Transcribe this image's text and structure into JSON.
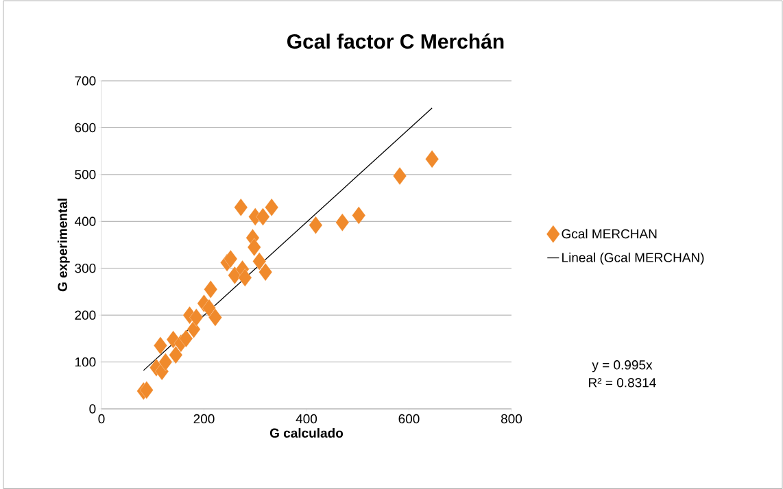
{
  "chart_data": {
    "type": "scatter",
    "title": "Gcal factor C Merchán",
    "xlabel": "G calculado",
    "ylabel": "G experimental",
    "xlim": [
      0,
      800
    ],
    "ylim": [
      0,
      700
    ],
    "xticks": [
      0,
      200,
      400,
      600,
      800
    ],
    "yticks": [
      0,
      100,
      200,
      300,
      400,
      500,
      600,
      700
    ],
    "grid": "y",
    "legend": "right",
    "annotations": [
      "y = 0.995x",
      "R² = 0.8314"
    ],
    "series": [
      {
        "name": "Gcal MERCHAN",
        "marker": "diamond",
        "color": "#f08a2c",
        "x": [
          82,
          88,
          107,
          118,
          115,
          125,
          140,
          145,
          155,
          165,
          172,
          180,
          185,
          200,
          210,
          213,
          222,
          245,
          252,
          260,
          272,
          275,
          280,
          295,
          298,
          300,
          308,
          315,
          320,
          332,
          418,
          470,
          502,
          582,
          645
        ],
        "values": [
          38,
          40,
          88,
          80,
          135,
          100,
          148,
          115,
          140,
          150,
          200,
          170,
          195,
          225,
          215,
          255,
          195,
          312,
          320,
          285,
          430,
          298,
          280,
          365,
          345,
          410,
          315,
          410,
          292,
          430,
          392,
          398,
          413,
          497,
          533
        ]
      },
      {
        "name": "Lineal (Gcal MERCHAN)",
        "type": "line",
        "marker": "none",
        "line_style": "solid",
        "color": "#000000",
        "x": [
          82,
          645
        ],
        "values": [
          82,
          642
        ]
      }
    ]
  }
}
